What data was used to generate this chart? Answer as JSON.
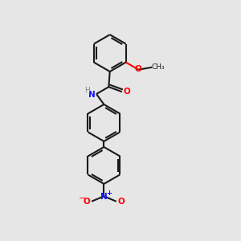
{
  "background_color": "#e6e6e6",
  "bond_color": "#1a1a1a",
  "bond_width": 1.5,
  "N_color": "#1414ff",
  "O_color": "#ff0000",
  "H_color": "#808080",
  "fig_width": 3.0,
  "fig_height": 3.0,
  "dpi": 100,
  "xlim": [
    0,
    10
  ],
  "ylim": [
    0,
    10
  ]
}
